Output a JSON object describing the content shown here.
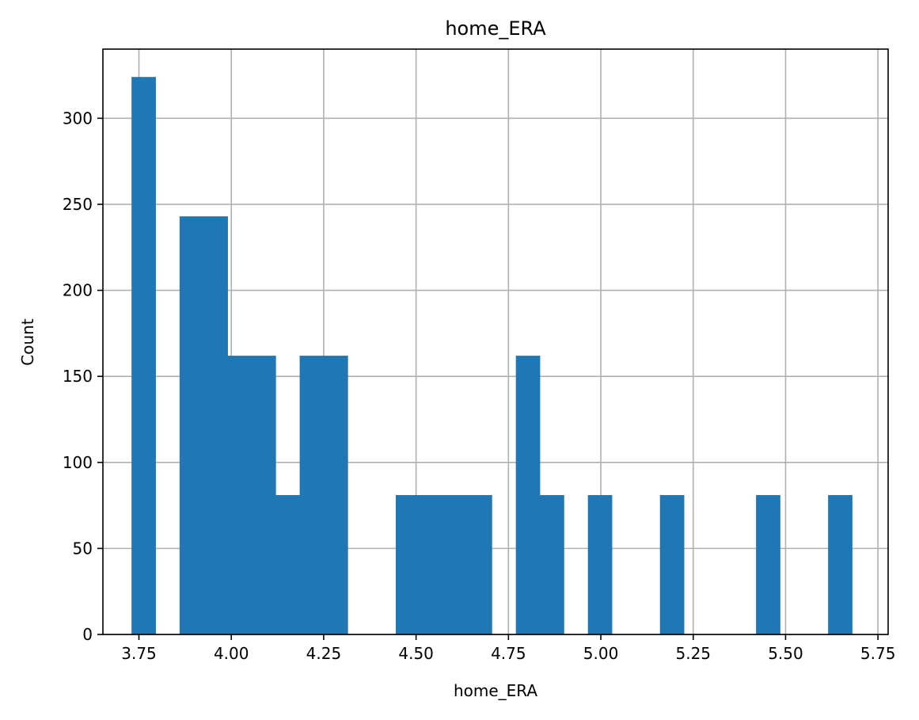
{
  "chart_data": {
    "type": "bar",
    "title": "home_ERA",
    "xlabel": "home_ERA",
    "ylabel": "Count",
    "xlim": [
      3.6525,
      5.7775
    ],
    "ylim": [
      0,
      340.2
    ],
    "grid": true,
    "bar_color": "#1f77b4",
    "bin_width": 0.065,
    "x_ticks": [
      3.75,
      4.0,
      4.25,
      4.5,
      4.75,
      5.0,
      5.25,
      5.5,
      5.75
    ],
    "x_tick_labels": [
      "3.75",
      "4.00",
      "4.25",
      "4.50",
      "4.75",
      "5.00",
      "5.25",
      "5.50",
      "5.75"
    ],
    "y_ticks": [
      0,
      50,
      100,
      150,
      200,
      250,
      300
    ],
    "y_tick_labels": [
      "0",
      "50",
      "100",
      "150",
      "200",
      "250",
      "300"
    ],
    "bins": [
      {
        "x0": 3.73,
        "x1": 3.795,
        "count": 324
      },
      {
        "x0": 3.795,
        "x1": 3.86,
        "count": 0
      },
      {
        "x0": 3.86,
        "x1": 3.925,
        "count": 243
      },
      {
        "x0": 3.925,
        "x1": 3.99,
        "count": 243
      },
      {
        "x0": 3.99,
        "x1": 4.055,
        "count": 162
      },
      {
        "x0": 4.055,
        "x1": 4.12,
        "count": 162
      },
      {
        "x0": 4.12,
        "x1": 4.185,
        "count": 81
      },
      {
        "x0": 4.185,
        "x1": 4.25,
        "count": 162
      },
      {
        "x0": 4.25,
        "x1": 4.315,
        "count": 162
      },
      {
        "x0": 4.315,
        "x1": 4.38,
        "count": 0
      },
      {
        "x0": 4.38,
        "x1": 4.445,
        "count": 0
      },
      {
        "x0": 4.445,
        "x1": 4.51,
        "count": 81
      },
      {
        "x0": 4.51,
        "x1": 4.575,
        "count": 81
      },
      {
        "x0": 4.575,
        "x1": 4.64,
        "count": 81
      },
      {
        "x0": 4.64,
        "x1": 4.705,
        "count": 81
      },
      {
        "x0": 4.705,
        "x1": 4.77,
        "count": 0
      },
      {
        "x0": 4.77,
        "x1": 4.835,
        "count": 162
      },
      {
        "x0": 4.835,
        "x1": 4.9,
        "count": 81
      },
      {
        "x0": 4.9,
        "x1": 4.965,
        "count": 0
      },
      {
        "x0": 4.965,
        "x1": 5.03,
        "count": 81
      },
      {
        "x0": 5.03,
        "x1": 5.095,
        "count": 0
      },
      {
        "x0": 5.095,
        "x1": 5.16,
        "count": 0
      },
      {
        "x0": 5.16,
        "x1": 5.225,
        "count": 81
      },
      {
        "x0": 5.225,
        "x1": 5.29,
        "count": 0
      },
      {
        "x0": 5.29,
        "x1": 5.355,
        "count": 0
      },
      {
        "x0": 5.355,
        "x1": 5.42,
        "count": 0
      },
      {
        "x0": 5.42,
        "x1": 5.485,
        "count": 81
      },
      {
        "x0": 5.485,
        "x1": 5.55,
        "count": 0
      },
      {
        "x0": 5.55,
        "x1": 5.615,
        "count": 0
      },
      {
        "x0": 5.615,
        "x1": 5.68,
        "count": 81
      }
    ]
  }
}
